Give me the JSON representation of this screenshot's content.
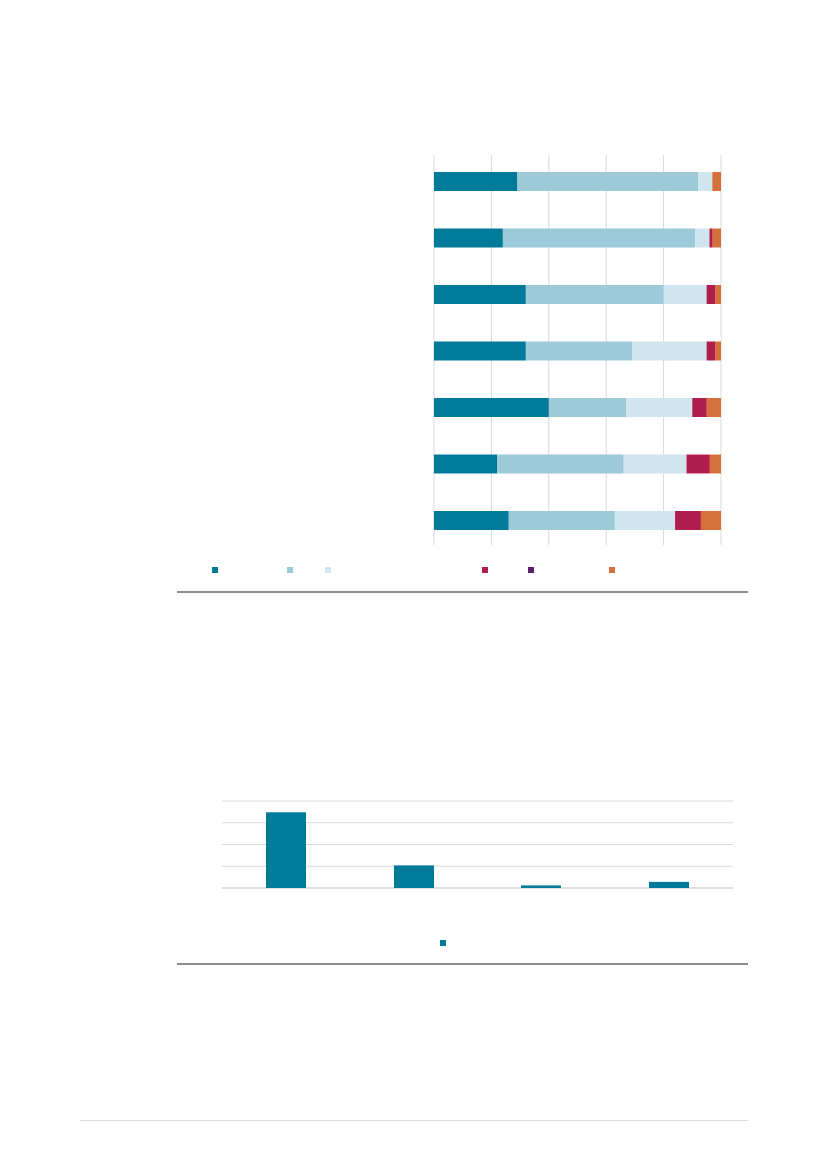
{
  "colors": {
    "grid": "#d9d9d9",
    "axis": "#bfbfbf",
    "rule": "#8c8c8c"
  },
  "chart_data": [
    {
      "type": "bar",
      "orientation": "horizontal",
      "stacked": true,
      "title": "",
      "xlabel": "",
      "ylabel": "",
      "xlim": [
        0,
        100
      ],
      "grid": true,
      "legend": "bottom",
      "categories": [
        "",
        "",
        "",
        "",
        "",
        "",
        ""
      ],
      "series": [
        {
          "color": "#007a99",
          "values": [
            29,
            24,
            32,
            32,
            40,
            22,
            26
          ]
        },
        {
          "color": "#9ccad8",
          "values": [
            63,
            67,
            48,
            37,
            27,
            44,
            37
          ]
        },
        {
          "color": "#d0e6ee",
          "values": [
            5,
            5,
            15,
            26,
            23,
            22,
            21
          ]
        },
        {
          "color": "#b01c4e",
          "values": [
            0,
            1,
            3,
            3,
            5,
            8,
            9
          ]
        },
        {
          "color": "#5e1f6b",
          "values": [
            0,
            0,
            0,
            0,
            0,
            0,
            0
          ]
        },
        {
          "color": "#d4703c",
          "values": [
            3,
            3,
            2,
            2,
            5,
            4,
            7
          ]
        }
      ]
    },
    {
      "type": "bar",
      "orientation": "vertical",
      "title": "",
      "xlabel": "",
      "ylabel": "",
      "ylim": [
        0,
        100
      ],
      "grid": true,
      "legend": "bottom",
      "categories": [
        "",
        "",
        "",
        ""
      ],
      "series": [
        {
          "color": "#007a99",
          "values": [
            87,
            26,
            3,
            7
          ]
        }
      ]
    }
  ]
}
